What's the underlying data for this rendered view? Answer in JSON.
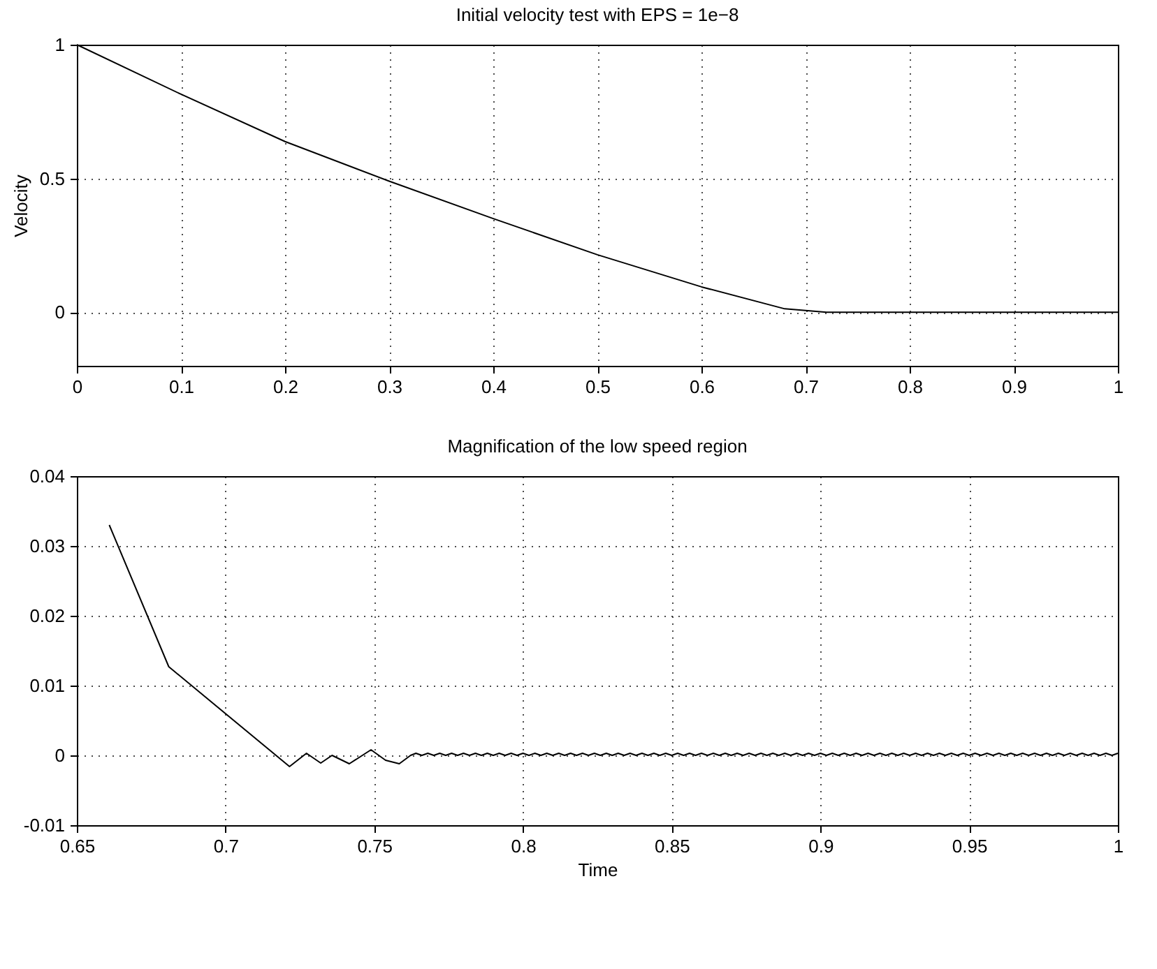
{
  "chart_data": [
    {
      "type": "line",
      "title": "Initial velocity test with EPS = 1e−8",
      "ylabel": "Velocity",
      "x": [
        0,
        0.1,
        0.2,
        0.3,
        0.4,
        0.5,
        0.6,
        0.68,
        0.72,
        1.0
      ],
      "series": [
        {
          "color": "#000000",
          "values": [
            1,
            0.815,
            0.638,
            0.49,
            0.35,
            0.215,
            0.095,
            0.013,
            0,
            0
          ]
        }
      ],
      "xlim": [
        0,
        1
      ],
      "ylim": [
        -0.2,
        1
      ],
      "xticks": [
        0,
        0.1,
        0.2,
        0.3,
        0.4,
        0.5,
        0.6,
        0.7,
        0.8,
        0.9,
        1
      ],
      "yticks": [
        0,
        0.5,
        1
      ],
      "grid": true
    },
    {
      "type": "line",
      "title": "Magnification of the low speed region",
      "xlabel": "Time",
      "x": [
        0.6609,
        0.6809,
        0.7215,
        0.7272,
        0.732,
        0.7358,
        0.7416,
        0.7489,
        0.7538,
        0.7584,
        0.7622,
        0.764,
        0.766,
        0.768,
        0.77,
        0.772,
        0.774,
        0.776,
        0.778,
        0.78,
        0.782,
        0.784,
        0.786,
        0.788,
        0.79,
        0.792,
        0.794,
        0.796,
        0.798,
        0.8,
        0.802,
        0.804,
        0.806,
        0.808,
        0.81,
        0.812,
        0.814,
        0.816,
        0.818,
        0.82,
        0.822,
        0.824,
        0.826,
        0.828,
        0.83,
        0.832,
        0.834,
        0.836,
        0.838,
        0.84,
        0.842,
        0.844,
        0.846,
        0.848,
        0.85,
        0.852,
        0.854,
        0.856,
        0.858,
        0.86,
        0.862,
        0.864,
        0.866,
        0.868,
        0.87,
        0.872,
        0.874,
        0.876,
        0.878,
        0.88,
        0.882,
        0.884,
        0.886,
        0.888,
        0.89,
        0.892,
        0.894,
        0.896,
        0.898,
        0.9,
        0.902,
        0.904,
        0.906,
        0.908,
        0.91,
        0.912,
        0.914,
        0.916,
        0.918,
        0.92,
        0.922,
        0.924,
        0.926,
        0.928,
        0.93,
        0.932,
        0.934,
        0.936,
        0.938,
        0.94,
        0.942,
        0.944,
        0.946,
        0.948,
        0.95,
        0.952,
        0.954,
        0.956,
        0.958,
        0.96,
        0.962,
        0.964,
        0.966,
        0.968,
        0.97,
        0.972,
        0.974,
        0.976,
        0.978,
        0.98,
        0.982,
        0.984,
        0.986,
        0.988,
        0.99,
        0.992,
        0.994,
        0.996,
        0.998,
        1.0
      ],
      "series": [
        {
          "color": "#000000",
          "values": [
            0.033,
            0.0127,
            -0.0016,
            0.0003,
            -0.0011,
            0.0,
            -0.0012,
            0.0008,
            -0.0007,
            -0.0012,
            0.0,
            0.0003,
            0.0,
            0.0003,
            0.0,
            0.0003,
            0.0,
            0.0003,
            0.0,
            0.0003,
            0.0,
            0.0003,
            0.0,
            0.0003,
            0.0,
            0.0003,
            0.0,
            0.0003,
            0.0,
            0.0003,
            0.0,
            0.0003,
            0.0,
            0.0003,
            0.0,
            0.0003,
            0.0,
            0.0003,
            0.0,
            0.0003,
            0.0,
            0.0003,
            0.0,
            0.0003,
            0.0,
            0.0003,
            0.0,
            0.0003,
            0.0,
            0.0003,
            0.0,
            0.0003,
            0.0,
            0.0003,
            0.0,
            0.0003,
            0.0,
            0.0003,
            0.0,
            0.0003,
            0.0,
            0.0003,
            0.0,
            0.0003,
            0.0,
            0.0003,
            0.0,
            0.0003,
            0.0,
            0.0003,
            0.0,
            0.0003,
            0.0,
            0.0003,
            0.0,
            0.0003,
            0.0,
            0.0003,
            0.0,
            0.0003,
            0.0,
            0.0003,
            0.0,
            0.0003,
            0.0,
            0.0003,
            0.0,
            0.0003,
            0.0,
            0.0003,
            0.0,
            0.0003,
            0.0,
            0.0003,
            0.0,
            0.0003,
            0.0,
            0.0003,
            0.0,
            0.0003,
            0.0,
            0.0003,
            0.0,
            0.0003,
            0.0,
            0.0003,
            0.0,
            0.0003,
            0.0,
            0.0003,
            0.0,
            0.0003,
            0.0,
            0.0003,
            0.0,
            0.0003,
            0.0,
            0.0003,
            0.0,
            0.0003,
            0.0,
            0.0003,
            0.0,
            0.0003,
            0.0,
            0.0003,
            0.0,
            0.0003,
            0.0,
            0.0003
          ]
        }
      ],
      "xlim": [
        0.65,
        1
      ],
      "ylim": [
        -0.01,
        0.04
      ],
      "xticks": [
        0.65,
        0.7,
        0.75,
        0.8,
        0.85,
        0.9,
        0.95,
        1
      ],
      "yticks": [
        -0.01,
        0,
        0.01,
        0.02,
        0.03,
        0.04
      ],
      "grid": true
    }
  ]
}
